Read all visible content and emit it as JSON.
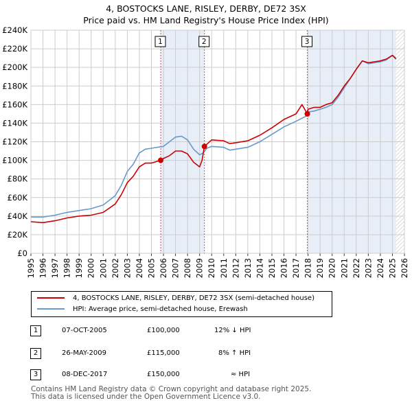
{
  "title_line1": "4, BOSTOCKS LANE, RISLEY, DERBY, DE72 3SX",
  "title_line2": "Price paid vs. HM Land Registry's House Price Index (HPI)",
  "legend": {
    "property": "4, BOSTOCKS LANE, RISLEY, DERBY, DE72 3SX (semi-detached house)",
    "hpi": "HPI: Average price, semi-detached house, Erewash"
  },
  "colors": {
    "property": "#cc0000",
    "hpi": "#6699cc",
    "shade": "#e8eef8",
    "grid": "#cccccc"
  },
  "sales": [
    {
      "num": "1",
      "date": "07-OCT-2005",
      "price": "£100,000",
      "delta": "12% ↓ HPI"
    },
    {
      "num": "2",
      "date": "26-MAY-2009",
      "price": "£115,000",
      "delta": "8% ↑ HPI"
    },
    {
      "num": "3",
      "date": "08-DEC-2017",
      "price": "£150,000",
      "delta": "≈ HPI"
    }
  ],
  "footer_line1": "Contains HM Land Registry data © Crown copyright and database right 2025.",
  "footer_line2": "This data is licensed under the Open Government Licence v3.0.",
  "chart_data": {
    "type": "line",
    "xlim": [
      1995,
      2026
    ],
    "ylim": [
      0,
      240000
    ],
    "yticks": [
      0,
      20000,
      40000,
      60000,
      80000,
      100000,
      120000,
      140000,
      160000,
      180000,
      200000,
      220000,
      240000
    ],
    "ytick_labels": [
      "£0",
      "£20K",
      "£40K",
      "£60K",
      "£80K",
      "£100K",
      "£120K",
      "£140K",
      "£160K",
      "£180K",
      "£200K",
      "£220K",
      "£240K"
    ],
    "xticks": [
      "1995",
      "1996",
      "1997",
      "1998",
      "1999",
      "2000",
      "2001",
      "2002",
      "2003",
      "2004",
      "2005",
      "2006",
      "2007",
      "2008",
      "2009",
      "2010",
      "2011",
      "2012",
      "2013",
      "2014",
      "2015",
      "2016",
      "2017",
      "2018",
      "2019",
      "2020",
      "2021",
      "2022",
      "2023",
      "2024",
      "2025",
      "2026"
    ],
    "shaded_periods": [
      [
        2005.77,
        2009.4
      ],
      [
        2017.94,
        2025.3
      ]
    ],
    "hatch_from": 2025.3,
    "sale_markers": [
      {
        "label": "1",
        "x": 2005.77,
        "y": 100000
      },
      {
        "label": "2",
        "x": 2009.4,
        "y": 115000
      },
      {
        "label": "3",
        "x": 2017.94,
        "y": 150000
      }
    ],
    "series": [
      {
        "name": "HPI: Average price, semi-detached house, Erewash",
        "x": [
          1995,
          1996,
          1997,
          1998,
          1999,
          2000,
          2001,
          2002,
          2002.5,
          2003,
          2003.5,
          2004,
          2004.5,
          2005,
          2005.5,
          2006,
          2006.5,
          2007,
          2007.5,
          2008,
          2008.5,
          2009,
          2009.3,
          2009.6,
          2010,
          2011,
          2011.5,
          2012,
          2013,
          2014,
          2015,
          2016,
          2017,
          2017.9,
          2018,
          2018.5,
          2019,
          2019.5,
          2020,
          2020.5,
          2021,
          2021.5,
          2022,
          2022.5,
          2023,
          2023.5,
          2024,
          2024.5,
          2025,
          2025.3
        ],
        "values": [
          39000,
          39000,
          41000,
          44000,
          46000,
          48000,
          52000,
          62000,
          73000,
          88000,
          96000,
          108000,
          112000,
          113000,
          114000,
          115000,
          120000,
          125000,
          126000,
          122000,
          112000,
          106000,
          108000,
          113000,
          115000,
          114000,
          111000,
          112000,
          114000,
          120000,
          128000,
          136000,
          142000,
          148000,
          152000,
          153000,
          155000,
          157000,
          160000,
          168000,
          178000,
          188000,
          198000,
          207000,
          204000,
          205000,
          206000,
          208000,
          213000,
          210000
        ]
      },
      {
        "name": "4, BOSTOCKS LANE, RISLEY, DERBY, DE72 3SX (semi-detached house)",
        "x": [
          1995,
          1996,
          1997,
          1998,
          1999,
          2000,
          2001,
          2002,
          2002.5,
          2003,
          2003.5,
          2004,
          2004.5,
          2005,
          2005.5,
          2005.77,
          2006,
          2006.5,
          2007,
          2007.5,
          2008,
          2008.5,
          2009,
          2009.2,
          2009.4,
          2010,
          2011,
          2011.5,
          2012,
          2013,
          2014,
          2015,
          2016,
          2017,
          2017.5,
          2017.94,
          2018,
          2018.5,
          2019,
          2019.5,
          2020,
          2020.5,
          2021,
          2021.5,
          2022,
          2022.5,
          2023,
          2023.5,
          2024,
          2024.5,
          2025,
          2025.3
        ],
        "values": [
          34000,
          33000,
          35000,
          38000,
          40000,
          41000,
          44000,
          53000,
          63000,
          76000,
          83000,
          93000,
          97000,
          97000,
          99000,
          100000,
          102000,
          105000,
          110000,
          110000,
          107000,
          98000,
          93000,
          100000,
          115000,
          122000,
          121000,
          118000,
          119000,
          121000,
          127000,
          135000,
          144000,
          150000,
          160000,
          150000,
          155000,
          157000,
          157000,
          160000,
          162000,
          170000,
          180000,
          188000,
          198000,
          207000,
          205000,
          206000,
          207000,
          209000,
          213000,
          209000
        ]
      }
    ]
  }
}
